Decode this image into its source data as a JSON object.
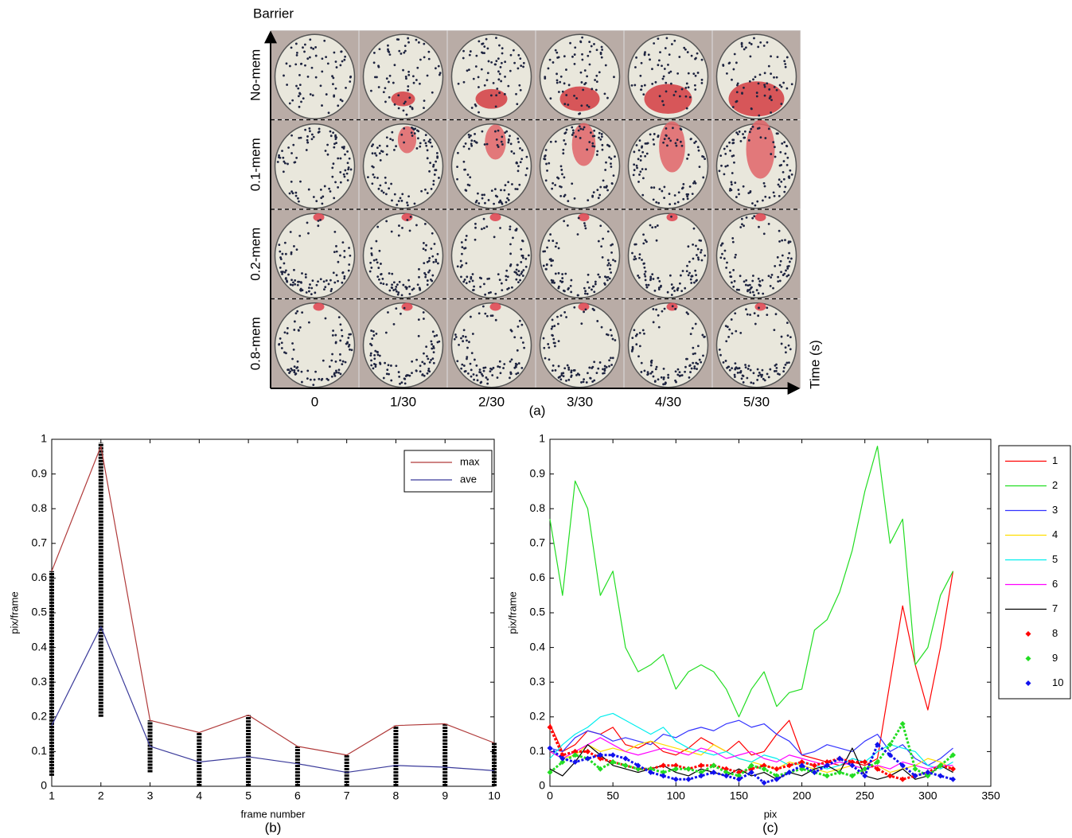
{
  "panel_a": {
    "axis_label": "Barrier",
    "rows": [
      "No-mem",
      "0.1-mem",
      "0.2-mem",
      "0.8-mem"
    ],
    "columns": [
      "0",
      "1/30",
      "2/30",
      "3/30",
      "4/30",
      "5/30"
    ],
    "time_label": "Time (s)",
    "caption": "(a)"
  },
  "chart_data": [
    {
      "type": "line",
      "caption": "(b)",
      "xlabel": "frame number",
      "ylabel": "pix/frame",
      "x": [
        1,
        2,
        3,
        4,
        5,
        6,
        7,
        8,
        9,
        10
      ],
      "xlim": [
        1,
        10
      ],
      "xticks": [
        1,
        2,
        3,
        4,
        5,
        6,
        7,
        8,
        9,
        10
      ],
      "ylim": [
        0,
        1
      ],
      "yticks": [
        0,
        0.1,
        0.2,
        0.3,
        0.4,
        0.5,
        0.6,
        0.7,
        0.8,
        0.9,
        1
      ],
      "legend": "upper-right",
      "grid": false,
      "series": [
        {
          "name": "max",
          "color": "#b03a3a",
          "values": [
            0.62,
            0.98,
            0.19,
            0.155,
            0.205,
            0.115,
            0.09,
            0.175,
            0.18,
            0.125
          ]
        },
        {
          "name": "ave",
          "color": "#3a3a9a",
          "values": [
            0.175,
            0.46,
            0.115,
            0.07,
            0.085,
            0.065,
            0.04,
            0.06,
            0.055,
            0.045
          ]
        }
      ],
      "dots": {
        "color": "#000000",
        "low": [
          0.03,
          0.2,
          0.04,
          0.0,
          0.0,
          0.0,
          0.0,
          0.0,
          0.0,
          0.0
        ],
        "high": [
          0.62,
          0.99,
          0.19,
          0.155,
          0.205,
          0.115,
          0.09,
          0.175,
          0.18,
          0.125
        ]
      }
    },
    {
      "type": "line",
      "caption": "(c)",
      "xlabel": "pix",
      "ylabel": "pix/frame",
      "x": [
        0,
        10,
        20,
        30,
        40,
        50,
        60,
        70,
        80,
        90,
        100,
        110,
        120,
        130,
        140,
        150,
        160,
        170,
        180,
        190,
        200,
        210,
        220,
        230,
        240,
        250,
        260,
        270,
        280,
        290,
        300,
        310,
        320
      ],
      "xlim": [
        0,
        350
      ],
      "xticks": [
        0,
        50,
        100,
        150,
        200,
        250,
        300,
        350
      ],
      "ylim": [
        0,
        1
      ],
      "yticks": [
        0,
        0.1,
        0.2,
        0.3,
        0.4,
        0.5,
        0.6,
        0.7,
        0.8,
        0.9,
        1
      ],
      "legend": "outside-right",
      "grid": false,
      "series": [
        {
          "name": "1",
          "color": "#ff0000",
          "mode": "lines",
          "values": [
            0.18,
            0.1,
            0.12,
            0.16,
            0.15,
            0.17,
            0.12,
            0.11,
            0.13,
            0.1,
            0.09,
            0.11,
            0.14,
            0.12,
            0.1,
            0.13,
            0.09,
            0.1,
            0.15,
            0.19,
            0.09,
            0.08,
            0.07,
            0.06,
            0.07,
            0.06,
            0.08,
            0.3,
            0.52,
            0.35,
            0.22,
            0.4,
            0.62
          ]
        },
        {
          "name": "2",
          "color": "#22dd22",
          "mode": "lines",
          "values": [
            0.77,
            0.55,
            0.88,
            0.8,
            0.55,
            0.62,
            0.4,
            0.33,
            0.35,
            0.38,
            0.28,
            0.33,
            0.35,
            0.33,
            0.28,
            0.2,
            0.28,
            0.33,
            0.23,
            0.27,
            0.28,
            0.45,
            0.48,
            0.56,
            0.68,
            0.85,
            0.98,
            0.7,
            0.77,
            0.35,
            0.4,
            0.55,
            0.62
          ]
        },
        {
          "name": "3",
          "color": "#3333ff",
          "mode": "lines",
          "values": [
            0.11,
            0.1,
            0.14,
            0.16,
            0.15,
            0.13,
            0.14,
            0.13,
            0.12,
            0.15,
            0.14,
            0.16,
            0.17,
            0.16,
            0.18,
            0.19,
            0.17,
            0.18,
            0.15,
            0.13,
            0.09,
            0.1,
            0.12,
            0.11,
            0.1,
            0.13,
            0.15,
            0.1,
            0.12,
            0.08,
            0.06,
            0.08,
            0.11
          ]
        },
        {
          "name": "4",
          "color": "#ffdd00",
          "mode": "lines",
          "values": [
            0.1,
            0.08,
            0.09,
            0.12,
            0.1,
            0.11,
            0.1,
            0.12,
            0.13,
            0.12,
            0.11,
            0.1,
            0.09,
            0.12,
            0.1,
            0.08,
            0.07,
            0.06,
            0.05,
            0.07,
            0.06,
            0.05,
            0.04,
            0.05,
            0.06,
            0.05,
            0.06,
            0.04,
            0.05,
            0.06,
            0.08,
            0.07,
            0.05
          ]
        },
        {
          "name": "5",
          "color": "#00eeee",
          "mode": "lines",
          "values": [
            0.08,
            0.12,
            0.15,
            0.17,
            0.2,
            0.21,
            0.19,
            0.17,
            0.15,
            0.17,
            0.13,
            0.11,
            0.1,
            0.09,
            0.1,
            0.08,
            0.07,
            0.09,
            0.08,
            0.06,
            0.07,
            0.06,
            0.05,
            0.06,
            0.08,
            0.07,
            0.1,
            0.12,
            0.11,
            0.1,
            0.06,
            0.05,
            0.07
          ]
        },
        {
          "name": "6",
          "color": "#ff00ff",
          "mode": "lines",
          "values": [
            0.1,
            0.08,
            0.1,
            0.12,
            0.14,
            0.12,
            0.1,
            0.09,
            0.1,
            0.11,
            0.1,
            0.09,
            0.11,
            0.1,
            0.08,
            0.09,
            0.1,
            0.08,
            0.07,
            0.09,
            0.08,
            0.07,
            0.06,
            0.07,
            0.06,
            0.05,
            0.06,
            0.05,
            0.07,
            0.06,
            0.05,
            0.06,
            0.06
          ]
        },
        {
          "name": "7",
          "color": "#000000",
          "mode": "lines",
          "values": [
            0.05,
            0.03,
            0.07,
            0.12,
            0.09,
            0.06,
            0.05,
            0.04,
            0.05,
            0.06,
            0.04,
            0.03,
            0.05,
            0.04,
            0.03,
            0.05,
            0.03,
            0.04,
            0.02,
            0.04,
            0.03,
            0.05,
            0.06,
            0.04,
            0.11,
            0.03,
            0.02,
            0.03,
            0.05,
            0.02,
            0.03,
            0.06,
            0.04
          ]
        },
        {
          "name": "8",
          "color": "#ff0000",
          "mode": "markers",
          "values": [
            0.17,
            0.09,
            0.1,
            0.1,
            0.08,
            0.07,
            0.06,
            0.05,
            0.05,
            0.06,
            0.06,
            0.05,
            0.06,
            0.06,
            0.05,
            0.04,
            0.05,
            0.06,
            0.05,
            0.06,
            0.07,
            0.06,
            0.07,
            0.08,
            0.07,
            0.07,
            0.05,
            0.03,
            0.02,
            0.03,
            0.04,
            0.06,
            0.05
          ]
        },
        {
          "name": "9",
          "color": "#22dd22",
          "mode": "markers",
          "values": [
            0.04,
            0.07,
            0.09,
            0.08,
            0.05,
            0.07,
            0.06,
            0.05,
            0.05,
            0.04,
            0.05,
            0.05,
            0.04,
            0.06,
            0.04,
            0.03,
            0.06,
            0.05,
            0.03,
            0.04,
            0.05,
            0.04,
            0.03,
            0.04,
            0.03,
            0.05,
            0.07,
            0.12,
            0.18,
            0.05,
            0.03,
            0.06,
            0.09
          ]
        },
        {
          "name": "10",
          "color": "#1111ee",
          "mode": "markers",
          "values": [
            0.11,
            0.08,
            0.07,
            0.08,
            0.09,
            0.09,
            0.08,
            0.06,
            0.04,
            0.03,
            0.02,
            0.02,
            0.03,
            0.04,
            0.03,
            0.02,
            0.04,
            0.01,
            0.02,
            0.04,
            0.06,
            0.04,
            0.06,
            0.08,
            0.06,
            0.03,
            0.12,
            0.09,
            0.06,
            0.03,
            0.04,
            0.03,
            0.02
          ]
        }
      ]
    }
  ]
}
